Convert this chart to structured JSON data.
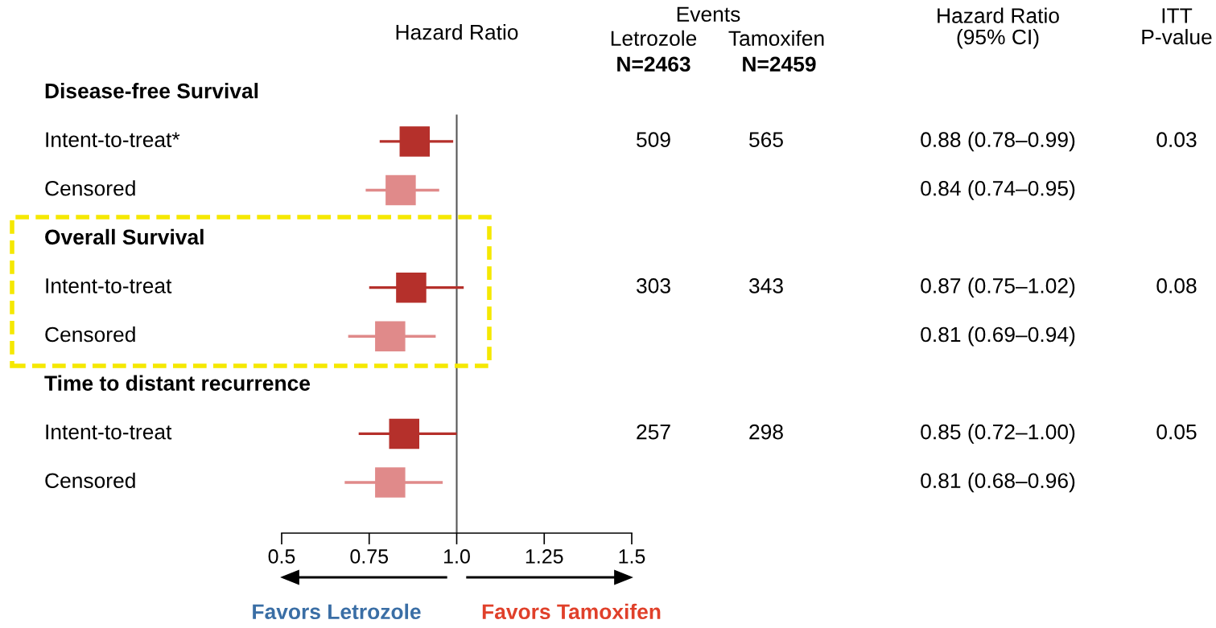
{
  "chart_data": {
    "type": "scatter",
    "orientation": "horizontal",
    "title": "Hazard Ratio",
    "categories": [
      "Disease-free Survival",
      "Intent-to-treat*",
      "Censored",
      "Overall Survival",
      "Intent-to-treat",
      "Censored",
      "Time to distant recurrence",
      "Intent-to-treat",
      "Censored"
    ],
    "series": [
      {
        "color": "#b5302b",
        "values": [
          null,
          0.88,
          null,
          null,
          0.87,
          null,
          null,
          0.85,
          null
        ],
        "errors": [
          null,
          [
            0.78,
            0.99
          ],
          null,
          null,
          [
            0.75,
            1.02
          ],
          null,
          null,
          [
            0.72,
            1.0
          ],
          null
        ]
      },
      {
        "color": "#e08a8a",
        "values": [
          null,
          null,
          0.84,
          null,
          null,
          0.81,
          null,
          null,
          0.81
        ],
        "errors": [
          null,
          null,
          [
            0.74,
            0.95
          ],
          null,
          null,
          [
            0.69,
            0.94
          ],
          null,
          null,
          [
            0.68,
            0.96
          ]
        ]
      }
    ],
    "xlim": [
      0.5,
      1.5
    ],
    "xticks": [
      0.5,
      0.75,
      {
        "value": 1.0,
        "label": "1.0"
      },
      1.25,
      1.5
    ],
    "ref_lines": [
      {
        "axis": "x",
        "value": 1.0,
        "color": "#555555"
      }
    ],
    "marker": "square",
    "grid": false,
    "legend": false,
    "tick_labels": "x",
    "annotations": [
      "Events",
      "Letrozole",
      "Tamoxifen",
      "N=2463",
      "N=2459",
      "Hazard Ratio\n(95% CI)",
      "ITT\nP-value",
      "509",
      "565",
      "0.88 (0.78–0.99)",
      "0.03",
      "0.84 (0.74–0.95)",
      "303",
      "343",
      "0.87 (0.75–1.02)",
      "0.08",
      "0.81 (0.69–0.94)",
      "257",
      "298",
      "0.85 (0.72–1.00)",
      "0.05",
      "0.81 (0.68–0.96)",
      "Favors Letrozole",
      "Favors Tamoxifen"
    ]
  }
}
